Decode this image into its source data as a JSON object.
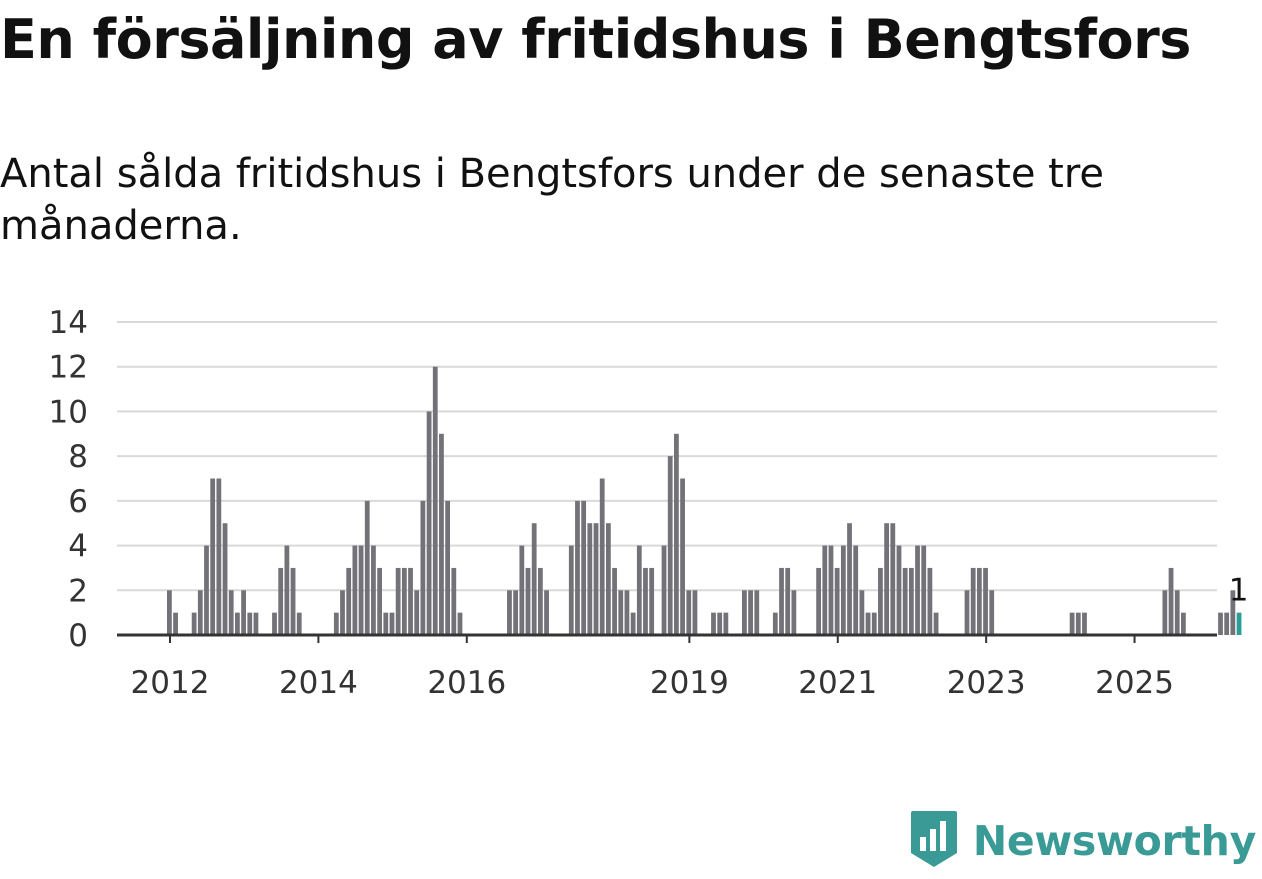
{
  "header": {
    "title": "En försäljning av fritidshus i Bengtsfors",
    "subtitle": "Antal sålda fritidshus i Bengtsfors under de senaste tre månaderna."
  },
  "brand": {
    "name": "Newsworthy",
    "icon": "newsworthy-logo-icon",
    "color": "#3a9a96"
  },
  "chart_data": {
    "type": "bar",
    "title": "",
    "xlabel": "",
    "ylabel": "",
    "ylim": [
      0,
      14
    ],
    "y_ticks": [
      "0",
      "2",
      "4",
      "6",
      "8",
      "10",
      "12",
      "14"
    ],
    "x_ticks": [
      "2012",
      "2014",
      "2016",
      "2019",
      "2021",
      "2023",
      "2025"
    ],
    "grid": true,
    "start_month": "2012-01",
    "bar_color": "#737278",
    "highlight_color": "#2b9d97",
    "highlight_label": "1",
    "values": [
      2,
      1,
      0,
      0,
      1,
      2,
      4,
      7,
      7,
      5,
      2,
      1,
      2,
      1,
      1,
      0,
      0,
      1,
      3,
      4,
      3,
      1,
      0,
      0,
      0,
      0,
      0,
      1,
      2,
      3,
      4,
      4,
      6,
      4,
      3,
      1,
      1,
      3,
      3,
      3,
      2,
      6,
      10,
      12,
      9,
      6,
      3,
      1,
      0,
      0,
      0,
      0,
      0,
      0,
      0,
      2,
      2,
      4,
      3,
      5,
      3,
      2,
      0,
      0,
      0,
      4,
      6,
      6,
      5,
      5,
      7,
      5,
      3,
      2,
      2,
      1,
      4,
      3,
      3,
      0,
      4,
      8,
      9,
      7,
      2,
      2,
      0,
      0,
      1,
      1,
      1,
      0,
      0,
      2,
      2,
      2,
      0,
      0,
      1,
      3,
      3,
      2,
      0,
      0,
      0,
      3,
      4,
      4,
      3,
      4,
      5,
      4,
      2,
      1,
      1,
      3,
      5,
      5,
      4,
      3,
      3,
      4,
      4,
      3,
      1,
      0,
      0,
      0,
      0,
      2,
      3,
      3,
      3,
      2,
      0,
      0,
      0,
      0,
      0,
      0,
      0,
      0,
      0,
      0,
      0,
      0,
      1,
      1,
      1,
      0,
      0,
      0,
      0,
      0,
      0,
      0,
      0,
      0,
      0,
      0,
      0,
      2,
      3,
      2,
      1,
      0,
      0,
      0,
      0,
      0,
      1,
      1,
      2,
      1
    ]
  }
}
